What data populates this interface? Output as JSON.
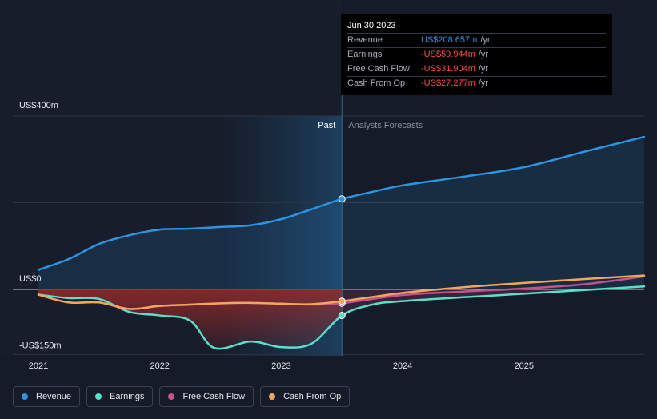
{
  "chart_data": {
    "type": "line",
    "y_tick_labels": [
      "US$400m",
      "US$0",
      "-US$150m"
    ],
    "ylim": [
      -150,
      400
    ],
    "x_tick_labels": [
      "2021",
      "2022",
      "2023",
      "2024",
      "2025"
    ],
    "xlim": [
      2021.0,
      2025.99
    ],
    "divider_x": 2023.5,
    "region_labels": {
      "past": "Past",
      "forecast": "Analysts Forecasts"
    },
    "series": [
      {
        "name": "Revenue",
        "color": "#2e93e0",
        "points": [
          [
            2021.0,
            45
          ],
          [
            2021.25,
            70
          ],
          [
            2021.5,
            105
          ],
          [
            2021.75,
            125
          ],
          [
            2022.0,
            138
          ],
          [
            2022.25,
            140
          ],
          [
            2022.5,
            144
          ],
          [
            2022.75,
            148
          ],
          [
            2023.0,
            162
          ],
          [
            2023.25,
            185
          ],
          [
            2023.5,
            208.657
          ],
          [
            2023.75,
            225
          ],
          [
            2024.0,
            240
          ],
          [
            2024.5,
            260
          ],
          [
            2025.0,
            282
          ],
          [
            2025.5,
            318
          ],
          [
            2025.99,
            352
          ]
        ]
      },
      {
        "name": "Earnings",
        "color": "#58e0c8",
        "points": [
          [
            2021.0,
            -12
          ],
          [
            2021.25,
            -20
          ],
          [
            2021.5,
            -22
          ],
          [
            2021.75,
            -52
          ],
          [
            2022.0,
            -60
          ],
          [
            2022.25,
            -72
          ],
          [
            2022.45,
            -135
          ],
          [
            2022.75,
            -120
          ],
          [
            2023.0,
            -133
          ],
          [
            2023.25,
            -125
          ],
          [
            2023.5,
            -59.944
          ],
          [
            2023.75,
            -35
          ],
          [
            2024.0,
            -27
          ],
          [
            2024.5,
            -18
          ],
          [
            2025.0,
            -10
          ],
          [
            2025.99,
            7
          ]
        ]
      },
      {
        "name": "Free Cash Flow",
        "color": "#c7508e",
        "points": [
          [
            2021.0,
            -12
          ],
          [
            2021.25,
            -30
          ],
          [
            2021.5,
            -30
          ],
          [
            2021.75,
            -45
          ],
          [
            2022.0,
            -38
          ],
          [
            2022.25,
            -35
          ],
          [
            2022.5,
            -32
          ],
          [
            2022.75,
            -31
          ],
          [
            2023.0,
            -33
          ],
          [
            2023.25,
            -35
          ],
          [
            2023.5,
            -31.904
          ],
          [
            2024.0,
            -13
          ],
          [
            2024.5,
            -5
          ],
          [
            2025.0,
            2
          ],
          [
            2025.5,
            12
          ],
          [
            2025.99,
            30
          ]
        ]
      },
      {
        "name": "Cash From Op",
        "color": "#f2a65a",
        "points": [
          [
            2021.0,
            -12
          ],
          [
            2021.25,
            -30
          ],
          [
            2021.5,
            -30
          ],
          [
            2021.75,
            -45
          ],
          [
            2022.0,
            -38
          ],
          [
            2022.25,
            -35
          ],
          [
            2022.5,
            -32
          ],
          [
            2022.75,
            -31
          ],
          [
            2023.0,
            -33
          ],
          [
            2023.25,
            -34
          ],
          [
            2023.5,
            -27.277
          ],
          [
            2024.0,
            -8
          ],
          [
            2024.5,
            5
          ],
          [
            2025.0,
            15
          ],
          [
            2025.5,
            24
          ],
          [
            2025.99,
            32
          ]
        ]
      }
    ]
  },
  "tooltip": {
    "date": "Jun 30 2023",
    "rows": [
      {
        "label": "Revenue",
        "value": "US$208.657m",
        "unit": "/yr",
        "color": "#2e93e0"
      },
      {
        "label": "Earnings",
        "value": "-US$59.944m",
        "unit": "/yr",
        "color": "#ff4a4a"
      },
      {
        "label": "Free Cash Flow",
        "value": "-US$31.904m",
        "unit": "/yr",
        "color": "#ff4a4a"
      },
      {
        "label": "Cash From Op",
        "value": "-US$27.277m",
        "unit": "/yr",
        "color": "#ff4a4a"
      }
    ]
  },
  "legend": [
    {
      "label": "Revenue",
      "color": "#2e93e0"
    },
    {
      "label": "Earnings",
      "color": "#58e0c8"
    },
    {
      "label": "Free Cash Flow",
      "color": "#c7508e"
    },
    {
      "label": "Cash From Op",
      "color": "#f2a65a"
    }
  ]
}
